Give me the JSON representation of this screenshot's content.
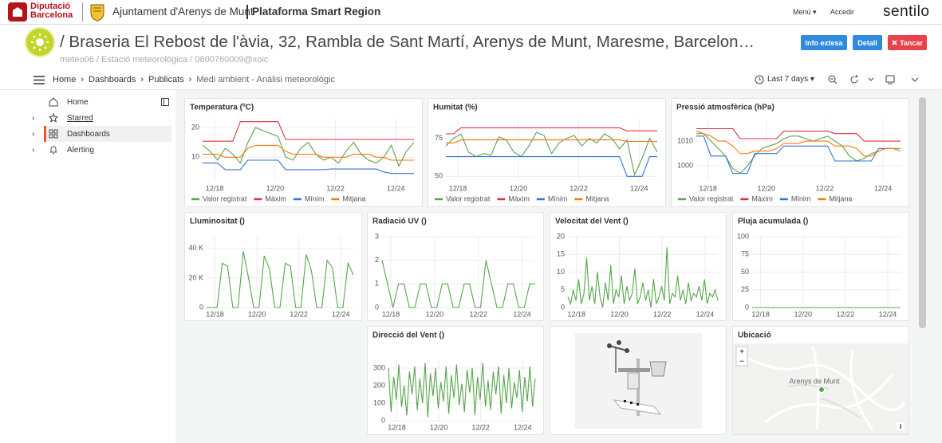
{
  "header": {
    "org_lines": [
      "Diputació",
      "Barcelona"
    ],
    "municipality": "Ajuntament d'Arenys de Munt",
    "platform": "Plataforma Smart Region",
    "menu": "Menú",
    "login": "Accedir",
    "brand": "sentilo"
  },
  "page": {
    "title": "/ Braseria El Rebost de l'àvia, 32, Rambla de Sant Martí, Arenys de Munt, Maresme, Barcelon…",
    "subtitle": "meteo06 / Estació meteorològica / 0800760009@xoic",
    "buttons": [
      "Info extesa",
      "Detall",
      "Tancar"
    ]
  },
  "breadcrumb": [
    "Home",
    "Dashboards",
    "Publicats",
    "Medi ambient - Anàlisi meteorològic"
  ],
  "time_range": "Last 7 days",
  "sidebar": [
    "Home",
    "Starred",
    "Dashboards",
    "Alerting"
  ],
  "chart_data": [
    {
      "type": "line",
      "title": "Temperatura (ºC)",
      "grid": true,
      "legend": "bottom",
      "x": [
        17.6,
        17.85,
        18.1,
        18.35,
        18.6,
        18.85,
        19.1,
        19.35,
        19.6,
        19.85,
        20.1,
        20.35,
        20.6,
        20.85,
        21.1,
        21.35,
        21.6,
        21.85,
        22.1,
        22.35,
        22.6,
        22.85,
        23.1,
        23.35,
        23.6,
        23.85,
        24.1,
        24.35,
        24.6
      ],
      "xlim": [
        17.6,
        24.6
      ],
      "xticks": [
        {
          "value": 18,
          "label": "12/18"
        },
        {
          "value": 20,
          "label": "12/20"
        },
        {
          "value": 22,
          "label": "12/22"
        },
        {
          "value": 24,
          "label": "12/24"
        }
      ],
      "ylim": [
        2,
        23
      ],
      "yticks": [
        10,
        20
      ],
      "series": [
        {
          "name": "Valor registrat",
          "color": "#56a64b",
          "values": [
            14,
            12,
            9,
            13,
            11,
            8,
            15,
            20,
            19,
            18,
            17,
            10,
            9,
            13,
            15,
            11,
            9,
            10,
            8,
            12,
            15,
            11,
            9,
            8,
            10,
            14,
            7,
            12,
            15
          ]
        },
        {
          "name": "Màxim",
          "color": "#e02f44",
          "values": [
            15.4,
            15.4,
            15.4,
            15.4,
            15.4,
            22,
            22,
            22,
            22,
            22,
            22,
            16,
            16,
            16,
            16,
            16,
            16,
            16,
            16,
            16,
            16,
            16,
            16,
            16,
            16,
            16,
            16,
            16,
            16
          ]
        },
        {
          "name": "Mínim",
          "color": "#3274d9",
          "values": [
            8,
            8,
            8,
            5.8,
            5.8,
            5.8,
            9,
            9,
            9,
            9,
            9,
            5.8,
            5.8,
            5.8,
            5.8,
            5.8,
            5.8,
            6,
            6,
            6,
            6,
            6,
            6,
            6,
            5,
            4.5,
            4.5,
            4.5,
            4.5
          ]
        },
        {
          "name": "Mitjana",
          "color": "#ff780a",
          "values": [
            11,
            11,
            11,
            10,
            10,
            10,
            13,
            14,
            14,
            14,
            14,
            12,
            11,
            11,
            11,
            11,
            10,
            10,
            10,
            10,
            11,
            11,
            11,
            10,
            10,
            9,
            9,
            9,
            9
          ]
        }
      ]
    },
    {
      "type": "line",
      "title": "Humitat (%)",
      "grid": true,
      "legend": "bottom",
      "x": [
        17.6,
        17.85,
        18.1,
        18.35,
        18.6,
        18.85,
        19.1,
        19.35,
        19.6,
        19.85,
        20.1,
        20.35,
        20.6,
        20.85,
        21.1,
        21.35,
        21.6,
        21.85,
        22.1,
        22.35,
        22.6,
        22.85,
        23.1,
        23.35,
        23.6,
        23.85,
        24.1,
        24.35,
        24.6
      ],
      "xlim": [
        17.6,
        24.6
      ],
      "xticks": [
        {
          "value": 18,
          "label": "12/18"
        },
        {
          "value": 20,
          "label": "12/20"
        },
        {
          "value": 22,
          "label": "12/22"
        },
        {
          "value": 24,
          "label": "12/24"
        }
      ],
      "ylim": [
        47,
        88
      ],
      "yticks": [
        50,
        75
      ],
      "series": [
        {
          "name": "Valor registrat",
          "color": "#56a64b",
          "values": [
            70,
            75,
            78,
            66,
            63,
            65,
            64,
            76,
            74,
            66,
            63,
            70,
            79,
            77,
            65,
            72,
            75,
            77,
            70,
            75,
            72,
            78,
            75,
            68,
            74,
            51,
            62,
            75,
            66
          ]
        },
        {
          "name": "Màxim",
          "color": "#e02f44",
          "values": [
            78,
            78,
            82,
            82,
            82,
            82,
            82,
            82,
            82,
            82,
            82,
            82,
            82,
            82,
            82,
            82,
            82,
            82,
            82,
            82,
            82,
            82,
            82,
            82,
            80,
            80,
            80,
            80,
            80
          ]
        },
        {
          "name": "Mínim",
          "color": "#3274d9",
          "values": [
            63,
            63,
            63,
            63,
            63,
            63,
            63,
            63,
            63,
            63,
            63,
            63,
            63,
            63,
            63,
            63,
            63,
            63,
            63,
            63,
            63,
            63,
            63,
            63,
            50,
            50,
            50,
            63,
            63
          ]
        },
        {
          "name": "Mitjana",
          "color": "#ff780a",
          "values": [
            72,
            72,
            74,
            74,
            74,
            74,
            74,
            74,
            74,
            74,
            74,
            74,
            74,
            74,
            74,
            74,
            74,
            74,
            74,
            74,
            74,
            74,
            74,
            74,
            73,
            73,
            73,
            73,
            73
          ]
        }
      ]
    },
    {
      "type": "line",
      "title": "Pressió atmosfèrica (hPa)",
      "grid": true,
      "legend": "bottom",
      "x": [
        17.6,
        17.85,
        18.1,
        18.35,
        18.6,
        18.85,
        19.1,
        19.35,
        19.6,
        19.85,
        20.1,
        20.35,
        20.6,
        20.85,
        21.1,
        21.35,
        21.6,
        21.85,
        22.1,
        22.35,
        22.6,
        22.85,
        23.1,
        23.35,
        23.6,
        23.85,
        24.1,
        24.35,
        24.6
      ],
      "xlim": [
        17.6,
        24.6
      ],
      "xticks": [
        {
          "value": 18,
          "label": "12/18"
        },
        {
          "value": 20,
          "label": "12/20"
        },
        {
          "value": 22,
          "label": "12/22"
        },
        {
          "value": 24,
          "label": "12/24"
        }
      ],
      "ylim": [
        994,
        1019
      ],
      "yticks": [
        1000,
        1010
      ],
      "series": [
        {
          "name": "Valor registrat",
          "color": "#56a64b",
          "values": [
            1014,
            1013,
            1010,
            1007,
            1004,
            999,
            997,
            1000,
            1004,
            1007,
            1008,
            1009,
            1011,
            1012,
            1012,
            1011,
            1010,
            1011,
            1012,
            1010,
            1008,
            1004,
            1002,
            1003,
            1005,
            1006,
            1007,
            1007,
            1006
          ]
        },
        {
          "name": "Màxim",
          "color": "#e02f44",
          "values": [
            1015,
            1015,
            1015,
            1015,
            1015,
            1015,
            1011,
            1011,
            1011,
            1011,
            1011,
            1011,
            1014,
            1014,
            1014,
            1014,
            1014,
            1014,
            1014,
            1013,
            1013,
            1013,
            1013,
            1010,
            1010,
            1010,
            1010,
            1010,
            1010
          ]
        },
        {
          "name": "Mínim",
          "color": "#3274d9",
          "values": [
            1012,
            1012,
            1004,
            1004,
            1004,
            997,
            997,
            997,
            1005,
            1005,
            1005,
            1005,
            1008,
            1008,
            1008,
            1008,
            1008,
            1008,
            1008,
            1002,
            1002,
            1002,
            1002,
            1002,
            1002,
            1007,
            1007,
            1007,
            1007
          ]
        },
        {
          "name": "Mitjana",
          "color": "#ff780a",
          "values": [
            1013,
            1013,
            1012,
            1010,
            1010,
            1008,
            1005,
            1005,
            1006,
            1006,
            1006,
            1007,
            1009,
            1009,
            1009,
            1010,
            1010,
            1010,
            1010,
            1008,
            1008,
            1008,
            1007,
            1004,
            1004,
            1006,
            1007,
            1007,
            1007
          ]
        }
      ]
    },
    {
      "type": "line",
      "title": "Lluminositat ()",
      "grid": true,
      "color": "#56a64b",
      "x": [
        17.6,
        17.85,
        18.1,
        18.35,
        18.6,
        18.85,
        19.1,
        19.35,
        19.6,
        19.85,
        20.1,
        20.35,
        20.6,
        20.85,
        21.1,
        21.35,
        21.6,
        21.85,
        22.1,
        22.35,
        22.6,
        22.85,
        23.1,
        23.35,
        23.6,
        23.85,
        24.1,
        24.35,
        24.6
      ],
      "values": [
        0,
        0,
        0,
        30000,
        28000,
        0,
        0,
        38000,
        20000,
        0,
        0,
        35000,
        26000,
        0,
        0,
        30000,
        28000,
        0,
        0,
        36000,
        25000,
        0,
        0,
        32000,
        27000,
        0,
        0,
        30000,
        22000
      ],
      "xlim": [
        17.6,
        24.6
      ],
      "xticks": [
        {
          "value": 18,
          "label": "12/18"
        },
        {
          "value": 20,
          "label": "12/20"
        },
        {
          "value": 22,
          "label": "12/22"
        },
        {
          "value": 24,
          "label": "12/24"
        }
      ],
      "ylim": [
        0,
        48000
      ],
      "yticks": [
        0,
        {
          "value": 20000,
          "label": "20 K"
        },
        {
          "value": 40000,
          "label": "40 K"
        }
      ]
    },
    {
      "type": "line",
      "title": "Radiació UV ()",
      "grid": true,
      "color": "#56a64b",
      "x": [
        17.6,
        17.85,
        18.1,
        18.35,
        18.6,
        18.85,
        19.1,
        19.35,
        19.6,
        19.85,
        20.1,
        20.35,
        20.6,
        20.85,
        21.1,
        21.35,
        21.6,
        21.85,
        22.1,
        22.35,
        22.6,
        22.85,
        23.1,
        23.35,
        23.6,
        23.85,
        24.1,
        24.35,
        24.6
      ],
      "values": [
        2,
        1,
        0,
        1,
        1,
        0,
        0,
        1,
        1,
        0,
        0,
        1,
        1,
        0,
        0,
        1,
        1,
        0,
        0,
        2,
        1,
        0,
        0,
        1,
        1,
        0,
        0,
        1,
        1
      ],
      "xlim": [
        17.6,
        24.6
      ],
      "xticks": [
        {
          "value": 18,
          "label": "12/18"
        },
        {
          "value": 20,
          "label": "12/20"
        },
        {
          "value": 22,
          "label": "12/22"
        },
        {
          "value": 24,
          "label": "12/24"
        }
      ],
      "ylim": [
        0,
        3
      ],
      "yticks": [
        0,
        1,
        2,
        3
      ]
    },
    {
      "type": "line",
      "title": "Velocitat del Vent ()",
      "grid": true,
      "color": "#56a64b",
      "x": [
        17.6,
        17.725,
        17.85,
        17.975,
        18.1,
        18.225,
        18.35,
        18.475,
        18.6,
        18.725,
        18.85,
        18.975,
        19.1,
        19.225,
        19.35,
        19.475,
        19.6,
        19.725,
        19.85,
        19.975,
        20.1,
        20.225,
        20.35,
        20.475,
        20.6,
        20.725,
        20.85,
        20.975,
        21.1,
        21.225,
        21.35,
        21.475,
        21.6,
        21.725,
        21.85,
        21.975,
        22.1,
        22.225,
        22.35,
        22.475,
        22.6,
        22.725,
        22.85,
        22.975,
        23.1,
        23.225,
        23.35,
        23.475,
        23.6,
        23.725,
        23.85,
        23.975,
        24.1,
        24.225,
        24.35,
        24.475,
        24.6
      ],
      "values": [
        3,
        1,
        5,
        2,
        8,
        1,
        4,
        14,
        2,
        6,
        1,
        10,
        3,
        0,
        7,
        2,
        12,
        1,
        5,
        3,
        9,
        1,
        6,
        2,
        4,
        11,
        1,
        3,
        7,
        2,
        5,
        0,
        8,
        1,
        3,
        6,
        2,
        17,
        1,
        4,
        3,
        9,
        2,
        5,
        1,
        7,
        2,
        4,
        3,
        6,
        2,
        8,
        1,
        4,
        3,
        5,
        2
      ],
      "xlim": [
        17.6,
        24.6
      ],
      "xticks": [
        {
          "value": 18,
          "label": "12/18"
        },
        {
          "value": 20,
          "label": "12/20"
        },
        {
          "value": 22,
          "label": "12/22"
        },
        {
          "value": 24,
          "label": "12/24"
        }
      ],
      "ylim": [
        0,
        20
      ],
      "yticks": [
        0,
        5,
        10,
        15,
        20
      ]
    },
    {
      "type": "line",
      "title": "Pluja acumulada ()",
      "grid": true,
      "color": "#56a64b",
      "x": [
        17.6,
        17.85,
        18.1,
        18.35,
        18.6,
        18.85,
        19.1,
        19.35,
        19.6,
        19.85,
        20.1,
        20.35,
        20.6,
        20.85,
        21.1,
        21.35,
        21.6,
        21.85,
        22.1,
        22.35,
        22.6,
        22.85,
        23.1,
        23.35,
        23.6,
        23.85,
        24.1,
        24.35,
        24.6
      ],
      "values": [
        0,
        0,
        0,
        0,
        0,
        0,
        0,
        0,
        0,
        0,
        0,
        0,
        0,
        0,
        0,
        0,
        0,
        0,
        0,
        0,
        0,
        0,
        0,
        0,
        0,
        0,
        0,
        0,
        0
      ],
      "xlim": [
        17.6,
        24.6
      ],
      "xticks": [
        {
          "value": 18,
          "label": "12/18"
        },
        {
          "value": 20,
          "label": "12/20"
        },
        {
          "value": 22,
          "label": "12/22"
        },
        {
          "value": 24,
          "label": "12/24"
        }
      ],
      "ylim": [
        0,
        100
      ],
      "yticks": [
        0,
        25,
        50,
        75,
        100
      ]
    },
    {
      "type": "line",
      "title": "Direcció del Vent ()",
      "grid": true,
      "color": "#56a64b",
      "x": [
        17.6,
        17.725,
        17.85,
        17.975,
        18.1,
        18.225,
        18.35,
        18.475,
        18.6,
        18.725,
        18.85,
        18.975,
        19.1,
        19.225,
        19.35,
        19.475,
        19.6,
        19.725,
        19.85,
        19.975,
        20.1,
        20.225,
        20.35,
        20.475,
        20.6,
        20.725,
        20.85,
        20.975,
        21.1,
        21.225,
        21.35,
        21.475,
        21.6,
        21.725,
        21.85,
        21.975,
        22.1,
        22.225,
        22.35,
        22.475,
        22.6,
        22.725,
        22.85,
        22.975,
        23.1,
        23.225,
        23.35,
        23.475,
        23.6,
        23.725,
        23.85,
        23.975,
        24.1,
        24.225,
        24.35,
        24.475,
        24.6
      ],
      "values": [
        300,
        50,
        250,
        120,
        320,
        80,
        200,
        30,
        280,
        150,
        310,
        60,
        240,
        100,
        330,
        20,
        270,
        140,
        300,
        70,
        220,
        110,
        310,
        40,
        260,
        130,
        320,
        90,
        210,
        50,
        290,
        160,
        300,
        30,
        250,
        120,
        330,
        80,
        230,
        60,
        280,
        150,
        310,
        40,
        260,
        100,
        300,
        70,
        220,
        130,
        290,
        50,
        250,
        110,
        310,
        80,
        240
      ],
      "xlim": [
        17.6,
        24.6
      ],
      "xticks": [
        {
          "value": 18,
          "label": "12/18"
        },
        {
          "value": 20,
          "label": "12/20"
        },
        {
          "value": 22,
          "label": "12/22"
        },
        {
          "value": 24,
          "label": "12/24"
        }
      ],
      "ylim": [
        0,
        350
      ],
      "yticks": [
        0,
        100,
        200,
        300
      ]
    }
  ],
  "map": {
    "title": "Ubicació",
    "place": "Arenys de Munt",
    "zoom_in": "+",
    "zoom_out": "−",
    "info": "i"
  }
}
